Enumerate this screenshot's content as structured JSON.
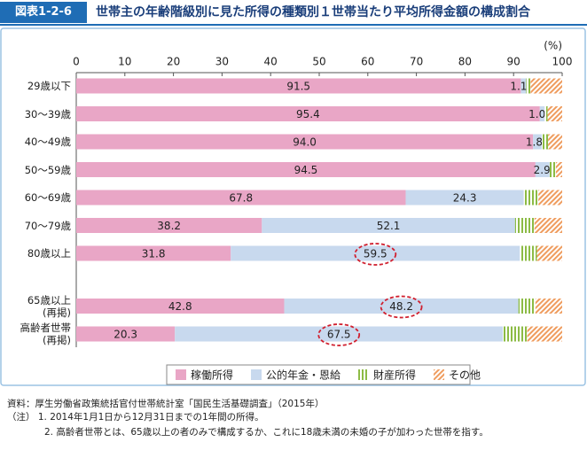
{
  "chart_data": {
    "type": "stacked-bar-horizontal",
    "figure_number": "図表1-2-6",
    "title": "世帯主の年齢階級別に見た所得の種類別１世帯当たり平均所得金額の構成割合",
    "unit": "(%)",
    "categories": [
      "29歳以下",
      "30～39歳",
      "40～49歳",
      "50～59歳",
      "60～69歳",
      "70～79歳",
      "80歳以上",
      "65歳以上\n(再掲)",
      "高齢者世帯\n(再掲)"
    ],
    "series": [
      {
        "name": "稼働所得",
        "color": "#e9a6c6",
        "show_labels": true,
        "values": [
          91.5,
          95.4,
          94.0,
          94.5,
          67.8,
          38.2,
          31.8,
          42.8,
          20.3
        ],
        "value_labels": [
          "91.5",
          "95.4",
          "94.0",
          "94.5",
          "67.8",
          "38.2",
          "31.8",
          "42.8",
          "20.3"
        ]
      },
      {
        "name": "公的年金・恩給",
        "color": "#c8d9ee",
        "show_labels": true,
        "values": [
          1.1,
          1.0,
          1.8,
          2.9,
          24.3,
          52.1,
          59.5,
          48.2,
          67.5
        ],
        "value_labels": [
          "1.1",
          "1.0",
          "1.8",
          "2.9",
          "24.3",
          "52.1",
          "59.5",
          "48.2",
          "67.5"
        ]
      },
      {
        "name": "財産所得",
        "color": "#8cbb45",
        "pattern": "vertical",
        "values": [
          0.9,
          0.6,
          1.3,
          1.3,
          3.0,
          4.0,
          3.5,
          3.5,
          5.0
        ]
      },
      {
        "name": "その他",
        "color": "#ef9c5e",
        "pattern": "diagonal",
        "values": [
          6.5,
          3.0,
          2.9,
          1.3,
          4.9,
          5.7,
          5.2,
          5.5,
          7.2
        ]
      }
    ],
    "highlights": [
      {
        "series": 1,
        "index": 6
      },
      {
        "series": 1,
        "index": 7
      },
      {
        "series": 1,
        "index": 8
      }
    ],
    "xlim": [
      0,
      100
    ],
    "xticks": [
      0,
      10,
      20,
      30,
      40,
      50,
      60,
      70,
      80,
      90,
      100
    ],
    "notes": [
      "資料：厚生労働省政策統括官付世帯統計室「国民生活基礎調査」（2015年）",
      "（注）  1. 2014年1月1日から12月31日までの1年間の所得。",
      "2. 高齢者世帯とは、65歳以上の者のみで構成するか、これに18歳未満の未婚の子が加わった世帯を指す。"
    ]
  }
}
